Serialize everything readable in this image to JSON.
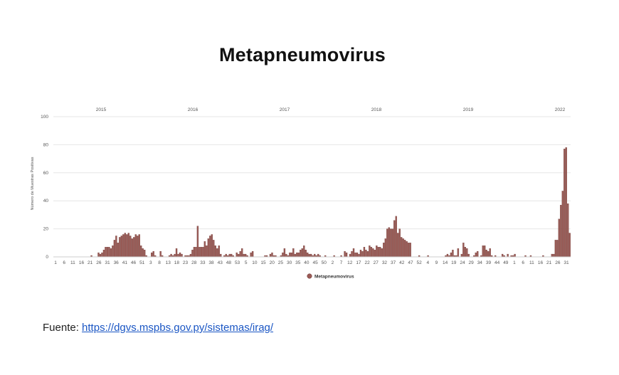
{
  "page": {
    "title": "Metapneumovirus",
    "source_label": "Fuente:",
    "source_url": "https://dgvs.mspbs.gov.py/sistemas/irag/"
  },
  "colors": {
    "bar": "#9a5a55",
    "bar_edge": "#6e3a36",
    "grid": "#e6e6e6",
    "axis": "#cccccc"
  },
  "chart_data": {
    "type": "bar",
    "title": "Metapneumovirus",
    "ylabel": "Número de Muestras Positivas",
    "ylim": [
      0,
      100
    ],
    "yticks": [
      0,
      20,
      40,
      60,
      80,
      100
    ],
    "grid": true,
    "legend": {
      "position": "bottom",
      "entries": [
        "Metapneumovirus"
      ]
    },
    "years": [
      "2015",
      "2016",
      "2017",
      "2018",
      "2019",
      "2022"
    ],
    "xtick_labels": [
      "1",
      "6",
      "11",
      "16",
      "21",
      "26",
      "31",
      "36",
      "41",
      "46",
      "51",
      "3",
      "8",
      "13",
      "18",
      "23",
      "28",
      "33",
      "38",
      "43",
      "48",
      "53",
      "5",
      "10",
      "15",
      "20",
      "25",
      "30",
      "35",
      "40",
      "45",
      "50",
      "2",
      "7",
      "12",
      "17",
      "22",
      "27",
      "32",
      "37",
      "42",
      "47",
      "52",
      "4",
      "9",
      "14",
      "19",
      "24",
      "29",
      "34",
      "39",
      "44",
      "49",
      "1",
      "6",
      "11",
      "16",
      "21",
      "26",
      "31"
    ],
    "series": [
      {
        "name": "Metapneumovirus",
        "values": [
          0,
          0,
          0,
          0,
          0,
          0,
          0,
          0,
          0,
          0,
          0,
          0,
          0,
          0,
          0,
          0,
          0,
          0,
          0,
          0,
          0,
          1,
          0,
          0,
          0,
          3,
          2,
          3,
          5,
          7,
          7,
          7,
          6,
          8,
          12,
          15,
          10,
          14,
          15,
          16,
          17,
          16,
          17,
          15,
          13,
          14,
          16,
          15,
          16,
          8,
          6,
          5,
          1,
          0,
          0,
          3,
          4,
          1,
          0,
          0,
          4,
          1,
          0,
          0,
          0,
          1,
          2,
          1,
          2,
          6,
          2,
          3,
          2,
          0,
          1,
          1,
          1,
          2,
          5,
          7,
          7,
          22,
          7,
          7,
          7,
          11,
          8,
          13,
          15,
          16,
          12,
          8,
          6,
          8,
          2,
          0,
          1,
          2,
          1,
          2,
          2,
          1,
          0,
          3,
          2,
          4,
          6,
          2,
          2,
          1,
          0,
          3,
          4,
          0,
          0,
          0,
          0,
          0,
          0,
          1,
          1,
          0,
          2,
          3,
          1,
          1,
          0,
          0,
          1,
          3,
          6,
          2,
          1,
          3,
          3,
          6,
          2,
          3,
          3,
          5,
          6,
          8,
          5,
          3,
          2,
          2,
          1,
          2,
          1,
          2,
          1,
          0,
          0,
          1,
          0,
          0,
          0,
          0,
          1,
          0,
          0,
          0,
          1,
          0,
          4,
          3,
          0,
          2,
          4,
          6,
          3,
          3,
          2,
          5,
          4,
          7,
          5,
          4,
          8,
          7,
          6,
          5,
          8,
          7,
          7,
          6,
          10,
          13,
          20,
          21,
          20,
          20,
          26,
          29,
          17,
          20,
          14,
          13,
          12,
          11,
          10,
          10,
          0,
          0,
          0,
          0,
          1,
          0,
          0,
          0,
          0,
          1,
          0,
          0,
          0,
          0,
          0,
          0,
          0,
          0,
          0,
          1,
          2,
          1,
          3,
          5,
          1,
          1,
          6,
          0,
          2,
          10,
          7,
          6,
          2,
          0,
          0,
          1,
          3,
          4,
          0,
          1,
          8,
          8,
          5,
          4,
          6,
          1,
          0,
          1,
          0,
          0,
          0,
          2,
          1,
          0,
          2,
          0,
          1,
          1,
          2,
          0,
          0,
          0,
          0,
          0,
          1,
          0,
          0,
          1,
          0,
          0,
          0,
          0,
          0,
          0,
          1,
          0,
          0,
          0,
          0,
          2,
          2,
          12,
          12,
          27,
          37,
          47,
          77,
          78,
          38,
          17
        ]
      }
    ]
  }
}
